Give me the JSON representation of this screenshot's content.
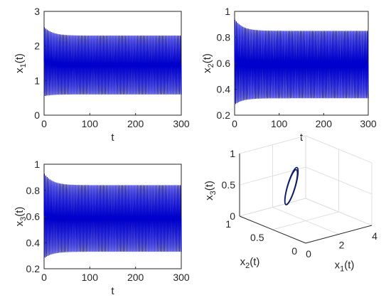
{
  "colors": {
    "series": "#0000cc",
    "orbit": "#0d1a66",
    "axis": "#262626"
  },
  "chart_data": [
    {
      "type": "line",
      "id": "x1",
      "xlabel": "t",
      "ylabel_base": "x",
      "ylabel_sub": "1",
      "ylabel_suffix": "(t)",
      "xlim": [
        0,
        300
      ],
      "ylim": [
        0,
        3
      ],
      "xticks": [
        "0",
        "100",
        "200",
        "300"
      ],
      "yticks": [
        "0",
        "1",
        "2",
        "3"
      ],
      "series": [
        {
          "description": "oscillation",
          "t_start": 0,
          "t_end": 300,
          "cycles": 100,
          "initial_max": 2.55,
          "initial_min": 0.55,
          "steady_max": 2.3,
          "steady_min": 0.6
        }
      ]
    },
    {
      "type": "line",
      "id": "x2",
      "xlabel": "t",
      "ylabel_base": "x",
      "ylabel_sub": "2",
      "ylabel_suffix": "(t)",
      "xlim": [
        0,
        300
      ],
      "ylim": [
        0.2,
        1
      ],
      "xticks": [
        "0",
        "100",
        "200",
        "300"
      ],
      "yticks": [
        "0.2",
        "0.4",
        "0.6",
        "0.8",
        "1"
      ],
      "series": [
        {
          "description": "oscillation",
          "t_start": 0,
          "t_end": 300,
          "cycles": 100,
          "initial_max": 0.94,
          "initial_min": 0.28,
          "steady_max": 0.85,
          "steady_min": 0.33
        }
      ]
    },
    {
      "type": "line",
      "id": "x3",
      "xlabel": "t",
      "ylabel_base": "x",
      "ylabel_sub": "3",
      "ylabel_suffix": "(t)",
      "xlim": [
        0,
        300
      ],
      "ylim": [
        0.2,
        1
      ],
      "xticks": [
        "0",
        "100",
        "200",
        "300"
      ],
      "yticks": [
        "0.2",
        "0.4",
        "0.6",
        "0.8",
        "1"
      ],
      "series": [
        {
          "description": "oscillation",
          "t_start": 0,
          "t_end": 300,
          "cycles": 100,
          "initial_max": 0.93,
          "initial_min": 0.28,
          "steady_max": 0.84,
          "steady_min": 0.33
        }
      ]
    },
    {
      "type": "line3d",
      "id": "phase",
      "xlabel_base": "x",
      "xlabel_sub": "1",
      "xlabel_suffix": "(t)",
      "ylabel_base": "x",
      "ylabel_sub": "2",
      "ylabel_suffix": "(t)",
      "zlabel_base": "x",
      "zlabel_sub": "3",
      "zlabel_suffix": "(t)",
      "xlim": [
        0,
        4
      ],
      "ylim": [
        0,
        1
      ],
      "zlim": [
        0,
        1
      ],
      "xticks": [
        "0",
        "2",
        "4"
      ],
      "yticks": [
        "0",
        "0.5",
        "1"
      ],
      "zticks": [
        "0",
        "0.5",
        "1"
      ],
      "orbit": {
        "x_center": 1.45,
        "x_amp": 0.9,
        "y_center": 0.58,
        "y_amp": 0.25,
        "z_center": 0.55,
        "z_amp": 0.28,
        "loops": 6
      }
    }
  ]
}
